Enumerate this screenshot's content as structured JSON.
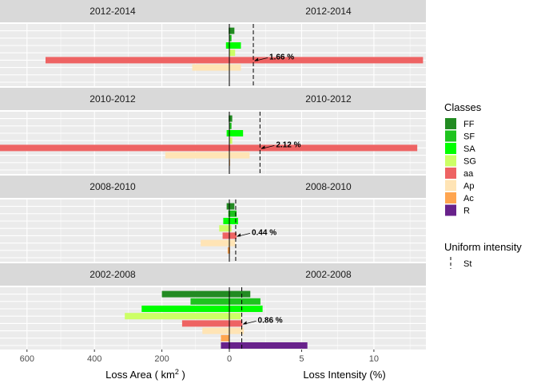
{
  "chart_data": {
    "type": "bar",
    "orientation": "horizontal",
    "grid": true,
    "legend_position": "right",
    "left_axis": {
      "title": "Loss Area ( km",
      "title_sup": "2",
      "title_end": " )",
      "ticks": [
        600,
        400,
        200,
        0
      ],
      "range": [
        680,
        0
      ],
      "reversed": true
    },
    "right_axis": {
      "title": "Loss Intensity (%)",
      "ticks": [
        0,
        5,
        10
      ],
      "range": [
        0,
        13.6
      ]
    },
    "classes": [
      {
        "name": "FF",
        "color": "#228B22"
      },
      {
        "name": "SF",
        "color": "#1EC31E"
      },
      {
        "name": "SA",
        "color": "#00FF00"
      },
      {
        "name": "SG",
        "color": "#CCFF66"
      },
      {
        "name": "aa",
        "color": "#EE6363"
      },
      {
        "name": "Ap",
        "color": "#FFE4B5"
      },
      {
        "name": "Ac",
        "color": "#FFA54F"
      },
      {
        "name": "R",
        "color": "#68228B"
      }
    ],
    "legend": {
      "classes_title": "Classes",
      "uniform_title": "Uniform intensity",
      "uniform_label": "St"
    },
    "panels": [
      {
        "period": "2012-2014",
        "area": {
          "FF": 2,
          "SF": 1,
          "SA": 10,
          "SG": 0,
          "aa": 545,
          "Ap": 110,
          "Ac": 0,
          "R": 0
        },
        "intensity": {
          "FF": 0.35,
          "SF": 0.15,
          "SA": 0.8,
          "SG": 0.4,
          "aa": 13.4,
          "Ap": 0.8,
          "Ac": 0,
          "R": 0
        },
        "uniform_intensity": 1.66,
        "label": "1.66 %"
      },
      {
        "period": "2010-2012",
        "area": {
          "FF": 2,
          "SF": 0,
          "SA": 8,
          "SG": 0,
          "aa": 695,
          "Ap": 190,
          "Ac": 0,
          "R": 0
        },
        "intensity": {
          "FF": 0.2,
          "SF": 0.15,
          "SA": 0.95,
          "SG": 0.2,
          "aa": 13.0,
          "Ap": 1.4,
          "Ac": 0.05,
          "R": 0
        },
        "uniform_intensity": 2.12,
        "label": "2.12 %"
      },
      {
        "period": "2008-2010",
        "area": {
          "FF": 8,
          "SF": 3,
          "SA": 18,
          "SG": 30,
          "aa": 20,
          "Ap": 85,
          "Ac": 5,
          "R": 0
        },
        "intensity": {
          "FF": 0.35,
          "SF": 0.5,
          "SA": 0.6,
          "SG": 0.15,
          "aa": 0.5,
          "Ap": 0.4,
          "Ac": 0.05,
          "R": 0
        },
        "uniform_intensity": 0.44,
        "label": "0.44 %"
      },
      {
        "period": "2002-2008",
        "area": {
          "FF": 200,
          "SF": 115,
          "SA": 260,
          "SG": 310,
          "aa": 140,
          "Ap": 80,
          "Ac": 25,
          "R": 25
        },
        "intensity": {
          "FF": 1.45,
          "SF": 2.15,
          "SA": 2.3,
          "SG": 0.8,
          "aa": 0.9,
          "Ap": 1.0,
          "Ac": 0,
          "R": 5.4
        },
        "uniform_intensity": 0.86,
        "label": "0.86 %"
      }
    ]
  }
}
